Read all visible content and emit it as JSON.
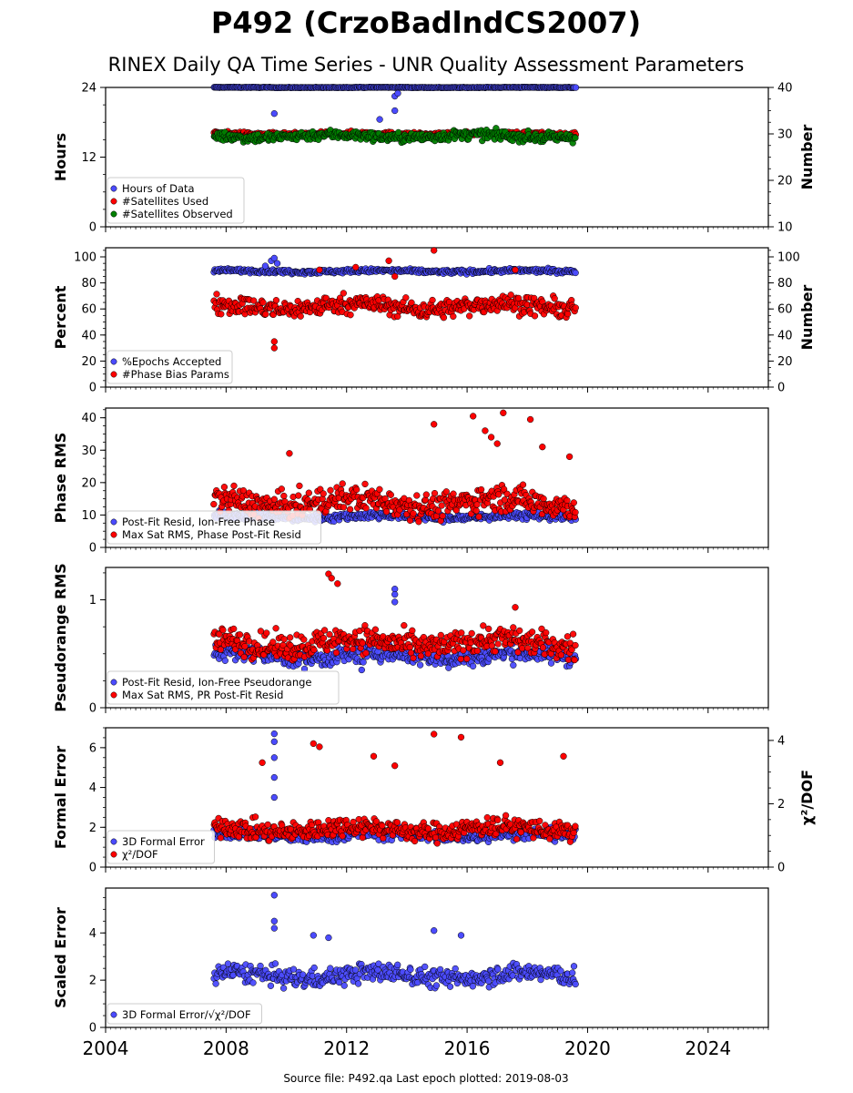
{
  "figure": {
    "title": "P492 (CrzoBadlndCS2007)",
    "subtitle": "RINEX Daily QA Time Series - UNR Quality Assessment Parameters",
    "footer": "Source file: P492.qa Last epoch plotted: 2019-08-03",
    "x_ticks": [
      "2004",
      "2008",
      "2012",
      "2016",
      "2020",
      "2024"
    ],
    "colors": {
      "blue": "#4b4bff",
      "red": "#ff0000",
      "green": "#008000",
      "edge": "#000000"
    }
  },
  "chart_data": [
    {
      "type": "scatter",
      "ylabel": "Hours",
      "y2label": "Number",
      "xlim": [
        2004,
        2026
      ],
      "ylim": [
        0,
        24
      ],
      "y2lim": [
        10,
        40
      ],
      "yticks": [
        0,
        12,
        24
      ],
      "y2ticks": [
        10,
        20,
        30,
        40
      ],
      "legend_position": "lower-left",
      "series": [
        {
          "name": "Hours of Data",
          "axis": "left",
          "color": "#4b4bff",
          "x_range": [
            2007.6,
            2019.6
          ],
          "base": 24,
          "jitter": 0.05,
          "outliers": [
            [
              2009.6,
              19.5
            ],
            [
              2013.1,
              18.5
            ],
            [
              2013.6,
              20
            ],
            [
              2013.6,
              22.5
            ],
            [
              2013.7,
              23
            ]
          ]
        },
        {
          "name": "#Satellites Used",
          "axis": "right",
          "color": "#ff0000",
          "x_range": [
            2007.6,
            2019.6
          ],
          "base": 30,
          "jitter": 0.4,
          "outliers": [
            [
              2009.7,
              30
            ]
          ]
        },
        {
          "name": "#Satellites Observed",
          "axis": "right",
          "color": "#008000",
          "x_range": [
            2007.6,
            2019.6
          ],
          "base": 29.5,
          "jitter": 1.0,
          "outliers": []
        }
      ]
    },
    {
      "type": "scatter",
      "ylabel": "Percent",
      "y2label": "Number",
      "xlim": [
        2004,
        2026
      ],
      "ylim": [
        0,
        107
      ],
      "y2lim": [
        0,
        107
      ],
      "yticks": [
        0,
        20,
        40,
        60,
        80,
        100
      ],
      "y2ticks": [
        0,
        20,
        40,
        60,
        80,
        100
      ],
      "legend_position": "lower-left",
      "series": [
        {
          "name": "%Epochs Accepted",
          "axis": "left",
          "color": "#4b4bff",
          "x_range": [
            2007.6,
            2019.6
          ],
          "base": 89,
          "jitter": 1.5,
          "outliers": [
            [
              2009.3,
              93
            ],
            [
              2009.5,
              97
            ],
            [
              2009.6,
              99
            ],
            [
              2009.7,
              95
            ]
          ]
        },
        {
          "name": "#Phase Bias Params",
          "axis": "right",
          "color": "#ff0000",
          "x_range": [
            2007.6,
            2019.6
          ],
          "base": 62,
          "jitter": 7,
          "outliers": [
            [
              2009.6,
              30
            ],
            [
              2009.6,
              35
            ],
            [
              2011.1,
              90
            ],
            [
              2013.4,
              97
            ],
            [
              2014.9,
              105
            ],
            [
              2012.3,
              92
            ],
            [
              2017.6,
              90
            ],
            [
              2013.6,
              85
            ]
          ]
        }
      ]
    },
    {
      "type": "scatter",
      "ylabel": "Phase RMS",
      "xlim": [
        2004,
        2026
      ],
      "ylim": [
        0,
        43
      ],
      "yticks": [
        0,
        10,
        20,
        30,
        40
      ],
      "legend_position": "lower-left",
      "series": [
        {
          "name": "Post-Fit Resid, Ion-Free Phase",
          "axis": "left",
          "color": "#4b4bff",
          "x_range": [
            2007.6,
            2019.6
          ],
          "base": 9.5,
          "jitter": 1.2,
          "outliers": []
        },
        {
          "name": "Max Sat RMS, Phase Post-Fit Resid",
          "axis": "left",
          "color": "#ff0000",
          "x_range": [
            2007.6,
            2019.6
          ],
          "base": 14,
          "jitter": 4,
          "outliers": [
            [
              2014.9,
              38
            ],
            [
              2016.2,
              40.5
            ],
            [
              2016.6,
              36
            ],
            [
              2017.2,
              41.5
            ],
            [
              2018.1,
              39.5
            ],
            [
              2018.5,
              31
            ],
            [
              2019.4,
              28
            ],
            [
              2016.8,
              34
            ],
            [
              2017.0,
              32
            ],
            [
              2010.1,
              29
            ]
          ]
        }
      ]
    },
    {
      "type": "scatter",
      "ylabel": "Pseudorange RMS",
      "xlim": [
        2004,
        2026
      ],
      "ylim": [
        0,
        1.3
      ],
      "yticks": [
        0,
        1
      ],
      "legend_position": "lower-left",
      "series": [
        {
          "name": "Post-Fit Resid, Ion-Free Pseudorange",
          "axis": "left",
          "color": "#4b4bff",
          "x_range": [
            2007.6,
            2019.6
          ],
          "base": 0.48,
          "jitter": 0.08,
          "outliers": [
            [
              2013.6,
              1.1
            ],
            [
              2013.6,
              1.05
            ],
            [
              2013.6,
              0.98
            ],
            [
              2012.5,
              0.35
            ]
          ]
        },
        {
          "name": "Max Sat RMS, PR Post-Fit Resid",
          "axis": "left",
          "color": "#ff0000",
          "x_range": [
            2007.6,
            2019.6
          ],
          "base": 0.6,
          "jitter": 0.12,
          "outliers": [
            [
              2011.4,
              1.24
            ],
            [
              2011.5,
              1.2
            ],
            [
              2011.7,
              1.15
            ],
            [
              2017.6,
              0.93
            ]
          ]
        }
      ]
    },
    {
      "type": "scatter",
      "ylabel": "Formal Error",
      "y2label": "χ²/DOF",
      "xlim": [
        2004,
        2026
      ],
      "ylim": [
        0,
        7
      ],
      "y2lim": [
        0,
        4.4
      ],
      "yticks": [
        0,
        2,
        4,
        6
      ],
      "y2ticks": [
        0,
        2,
        4
      ],
      "legend_position": "lower-left",
      "series": [
        {
          "name": "3D Formal Error",
          "axis": "left",
          "color": "#4b4bff",
          "x_range": [
            2007.6,
            2019.6
          ],
          "base": 1.6,
          "jitter": 0.3,
          "outliers": [
            [
              2009.6,
              6.7
            ],
            [
              2009.6,
              6.3
            ],
            [
              2009.6,
              5.5
            ],
            [
              2009.6,
              4.5
            ],
            [
              2009.6,
              3.5
            ]
          ]
        },
        {
          "name": "χ²/DOF",
          "axis": "right",
          "color": "#ff0000",
          "x_range": [
            2007.6,
            2019.6
          ],
          "base": 1.2,
          "jitter": 0.3,
          "outliers": [
            [
              2010.9,
              3.9
            ],
            [
              2011.1,
              3.8
            ],
            [
              2014.9,
              4.2
            ],
            [
              2015.8,
              4.1
            ],
            [
              2019.2,
              3.5
            ],
            [
              2009.2,
              3.3
            ],
            [
              2012.9,
              3.5
            ],
            [
              2013.6,
              3.2
            ],
            [
              2017.1,
              3.3
            ]
          ]
        }
      ]
    },
    {
      "type": "scatter",
      "ylabel": "Scaled Error",
      "xlim": [
        2004,
        2026
      ],
      "ylim": [
        0,
        5.9
      ],
      "yticks": [
        0,
        2,
        4
      ],
      "legend_position": "lower-left",
      "series": [
        {
          "name": "3D Formal Error/√χ²/DOF",
          "axis": "left",
          "color": "#4b4bff",
          "x_range": [
            2007.6,
            2019.6
          ],
          "base": 2.2,
          "jitter": 0.4,
          "outliers": [
            [
              2009.6,
              5.6
            ],
            [
              2009.6,
              4.5
            ],
            [
              2009.6,
              4.2
            ],
            [
              2014.9,
              4.1
            ],
            [
              2015.8,
              3.9
            ],
            [
              2010.9,
              3.9
            ],
            [
              2011.4,
              3.8
            ]
          ]
        }
      ]
    }
  ]
}
